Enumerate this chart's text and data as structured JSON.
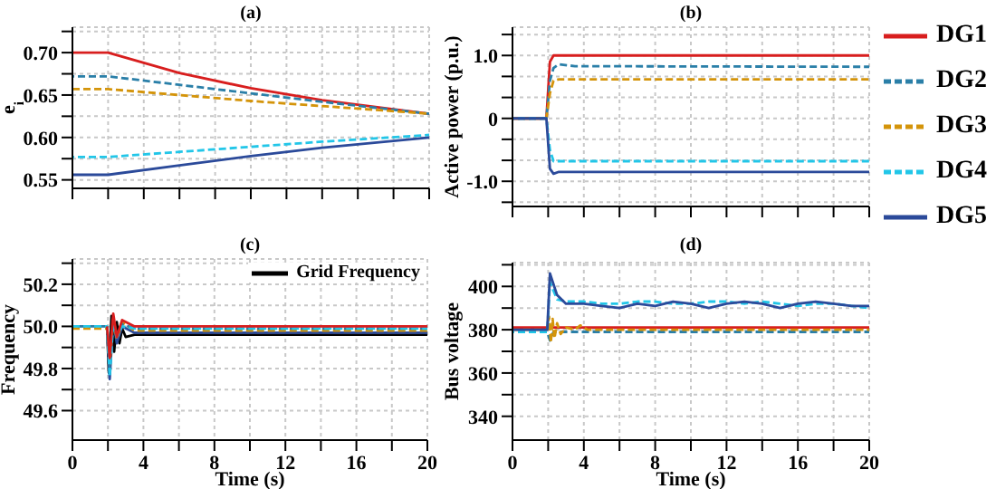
{
  "chart_data": [
    {
      "type": "line",
      "title": "(a)",
      "ylabel": "e$_{i}$",
      "xlim": [
        0,
        20
      ],
      "xticks": [
        {
          "value": 0,
          "label": null
        },
        {
          "value": 2,
          "label": null
        },
        {
          "value": 4,
          "label": null
        },
        {
          "value": 6,
          "label": null
        },
        {
          "value": 8,
          "label": null
        },
        {
          "value": 10,
          "label": null
        },
        {
          "value": 12,
          "label": null
        },
        {
          "value": 14,
          "label": null
        },
        {
          "value": 16,
          "label": null
        },
        {
          "value": 18,
          "label": null
        },
        {
          "value": 20,
          "label": null
        }
      ],
      "ylim": [
        0.54,
        0.73
      ],
      "yticks": [
        0.55,
        {
          "value": 0.575,
          "label": null
        },
        {
          "value": 0.6,
          "label": "0.60"
        },
        {
          "value": 0.625,
          "label": null
        },
        0.65,
        {
          "value": 0.675,
          "label": null
        },
        {
          "value": 0.7,
          "label": "0.70"
        },
        {
          "value": 0.725,
          "label": null
        }
      ],
      "grid": true,
      "tick_labels": "y",
      "series": [
        {
          "color": "#d81e1e",
          "line_style": "solid",
          "x": [
            0,
            2,
            6,
            10,
            14,
            20
          ],
          "values": [
            0.7,
            0.7,
            0.676,
            0.658,
            0.644,
            0.628
          ]
        },
        {
          "color": "#2a7fa8",
          "line_style": "dashed",
          "x": [
            0,
            2,
            6,
            10,
            14,
            20
          ],
          "values": [
            0.672,
            0.672,
            0.662,
            0.652,
            0.642,
            0.628
          ]
        },
        {
          "color": "#d4940a",
          "line_style": "dashed",
          "x": [
            0,
            2,
            6,
            10,
            14,
            20
          ],
          "values": [
            0.657,
            0.657,
            0.65,
            0.643,
            0.637,
            0.628
          ]
        },
        {
          "color": "#22c6e8",
          "line_style": "dashed",
          "x": [
            0,
            2,
            6,
            10,
            14,
            20
          ],
          "values": [
            0.577,
            0.577,
            0.583,
            0.589,
            0.595,
            0.603
          ]
        },
        {
          "color": "#2b4a9a",
          "line_style": "solid",
          "x": [
            0,
            2,
            6,
            10,
            14,
            20
          ],
          "values": [
            0.556,
            0.556,
            0.567,
            0.578,
            0.588,
            0.6
          ]
        }
      ]
    },
    {
      "type": "line",
      "title": "(b)",
      "ylabel": "Active power (p.u.)",
      "xlim": [
        0,
        20
      ],
      "xticks": [
        {
          "value": 0,
          "label": null
        },
        {
          "value": 2,
          "label": null
        },
        {
          "value": 4,
          "label": null
        },
        {
          "value": 6,
          "label": null
        },
        {
          "value": 8,
          "label": null
        },
        {
          "value": 10,
          "label": null
        },
        {
          "value": 12,
          "label": null
        },
        {
          "value": 14,
          "label": null
        },
        {
          "value": 16,
          "label": null
        },
        {
          "value": 18,
          "label": null
        },
        {
          "value": 20,
          "label": null
        }
      ],
      "ylim": [
        -1.4,
        1.45
      ],
      "yticks": [
        {
          "value": -1.333,
          "label": null
        },
        {
          "value": -1,
          "label": "-1.0"
        },
        {
          "value": -0.667,
          "label": null
        },
        {
          "value": -0.333,
          "label": null
        },
        0,
        {
          "value": 0.333,
          "label": null
        },
        {
          "value": 0.667,
          "label": null
        },
        {
          "value": 1,
          "label": "1.0"
        },
        {
          "value": 1.333,
          "label": null
        }
      ],
      "grid": true,
      "tick_labels": "y",
      "legend": "right",
      "series": [
        {
          "name": "DG1",
          "color": "#d81e1e",
          "line_style": "solid",
          "x": [
            0,
            1.9,
            2.1,
            2.3,
            2.6,
            3.5,
            20
          ],
          "values": [
            0,
            0,
            0.9,
            1.0,
            1.0,
            1.0,
            1.0
          ]
        },
        {
          "name": "DG2",
          "color": "#2a7fa8",
          "line_style": "dashed",
          "x": [
            0,
            1.9,
            2.1,
            2.3,
            2.6,
            3.5,
            20
          ],
          "values": [
            0,
            0,
            0.6,
            0.8,
            0.86,
            0.83,
            0.82
          ]
        },
        {
          "name": "DG3",
          "color": "#d4940a",
          "line_style": "dashed",
          "x": [
            0,
            1.9,
            2.1,
            2.3,
            2.6,
            3.5,
            20
          ],
          "values": [
            0,
            0,
            0.4,
            0.6,
            0.62,
            0.62,
            0.62
          ]
        },
        {
          "name": "DG4",
          "color": "#22c6e8",
          "line_style": "dashed",
          "x": [
            0,
            1.9,
            2.1,
            2.3,
            2.6,
            3.5,
            20
          ],
          "values": [
            0,
            0,
            -0.5,
            -0.68,
            -0.68,
            -0.68,
            -0.68
          ]
        },
        {
          "name": "DG5",
          "color": "#2b4a9a",
          "line_style": "solid",
          "x": [
            0,
            1.9,
            2.1,
            2.3,
            2.6,
            3.5,
            20
          ],
          "values": [
            0,
            0,
            -0.8,
            -0.88,
            -0.85,
            -0.85,
            -0.85
          ]
        }
      ]
    },
    {
      "type": "line",
      "title": "(c)",
      "xlabel": "Time (s)",
      "ylabel": "Frequency",
      "xlim": [
        0,
        20
      ],
      "xticks": [
        0,
        {
          "value": 2,
          "label": null
        },
        4,
        {
          "value": 6,
          "label": null
        },
        8,
        {
          "value": 10,
          "label": null
        },
        12,
        {
          "value": 14,
          "label": null
        },
        16,
        {
          "value": 18,
          "label": null
        },
        20
      ],
      "ylim": [
        49.46,
        50.32
      ],
      "yticks": [
        49.6,
        {
          "value": 49.7,
          "label": null
        },
        49.8,
        {
          "value": 49.9,
          "label": null
        },
        {
          "value": 50,
          "label": "50.0"
        },
        {
          "value": 50.1,
          "label": null
        },
        50.2,
        {
          "value": 50.3,
          "label": null
        }
      ],
      "grid": true,
      "legend": "top right",
      "series": [
        {
          "name": "Grid Frequency",
          "color": "#000000",
          "line_style": "solid",
          "x": [
            1.95,
            2.05,
            2.2,
            2.35,
            2.5,
            2.65,
            2.8,
            3.0,
            3.5,
            20
          ],
          "values": [
            50.0,
            49.78,
            50.05,
            49.88,
            50.02,
            49.92,
            49.99,
            49.95,
            49.96,
            49.96
          ]
        },
        {
          "color": "#2b4a9a",
          "line_style": "solid",
          "x": [
            1.95,
            2.1,
            2.3,
            2.5,
            2.8,
            3.5,
            20
          ],
          "values": [
            50.0,
            49.75,
            50.04,
            49.92,
            50.0,
            49.97,
            49.97
          ]
        },
        {
          "color": "#d4940a",
          "line_style": "dashed",
          "x": [
            0,
            1.95,
            2.1,
            2.3,
            2.5,
            2.8,
            3.5,
            20
          ],
          "values": [
            49.99,
            49.99,
            49.82,
            50.04,
            49.94,
            50.02,
            49.98,
            49.98
          ]
        },
        {
          "color": "#2a7fa8",
          "line_style": "dashed",
          "x": [
            0,
            1.95,
            2.1,
            2.3,
            2.5,
            2.8,
            3.5,
            20
          ],
          "values": [
            50.0,
            50.0,
            49.8,
            50.03,
            49.96,
            50.01,
            49.99,
            49.99
          ]
        },
        {
          "color": "#22c6e8",
          "line_style": "dashed",
          "x": [
            0,
            1.95,
            2.1,
            2.3,
            2.5,
            2.8,
            3.5,
            20
          ],
          "values": [
            50.0,
            50.0,
            49.76,
            50.02,
            49.95,
            50.0,
            49.99,
            49.99
          ]
        },
        {
          "color": "#d81e1e",
          "line_style": "solid",
          "x": [
            1.95,
            2.1,
            2.3,
            2.5,
            2.8,
            3.5,
            20
          ],
          "values": [
            50.0,
            49.85,
            50.06,
            49.95,
            50.03,
            50.0,
            50.0
          ]
        }
      ]
    },
    {
      "type": "line",
      "title": "(d)",
      "xlabel": "Time (s)",
      "ylabel": "Bus voltage",
      "xlim": [
        0,
        20
      ],
      "xticks": [
        0,
        {
          "value": 2,
          "label": null
        },
        4,
        {
          "value": 6,
          "label": null
        },
        8,
        {
          "value": 10,
          "label": null
        },
        12,
        {
          "value": 14,
          "label": null
        },
        16,
        {
          "value": 18,
          "label": null
        },
        20
      ],
      "ylim": [
        329,
        411
      ],
      "yticks": [
        340,
        {
          "value": 350,
          "label": null
        },
        360,
        {
          "value": 370,
          "label": null
        },
        380,
        {
          "value": 390,
          "label": null
        },
        400,
        {
          "value": 410,
          "label": null
        }
      ],
      "grid": true,
      "series": [
        {
          "color": "#d81e1e",
          "line_style": "solid",
          "x": [
            0,
            2,
            20
          ],
          "values": [
            381,
            381,
            381
          ]
        },
        {
          "color": "#2a7fa8",
          "line_style": "dashed",
          "x": [
            0,
            1.95,
            2.1,
            2.3,
            20
          ],
          "values": [
            379,
            379,
            375,
            379,
            379
          ]
        },
        {
          "color": "#d4940a",
          "line_style": "dashed",
          "x": [
            0,
            1.95,
            2.05,
            2.15,
            2.25,
            2.35,
            2.5,
            2.7,
            3,
            3.5,
            3.8,
            4.2,
            20
          ],
          "values": [
            380,
            380,
            386,
            374,
            385,
            376,
            383,
            378,
            381,
            380,
            382,
            380,
            380
          ]
        },
        {
          "color": "#22c6e8",
          "line_style": "dashed",
          "x": [
            0,
            1.95,
            2.1,
            2.5,
            3,
            4,
            5,
            6,
            7,
            8,
            9,
            10,
            11,
            12,
            13,
            14,
            15,
            16,
            17,
            18,
            19,
            20
          ],
          "values": [
            379,
            379,
            402,
            394,
            393,
            393,
            392,
            392,
            393,
            393,
            392,
            392,
            393,
            393,
            392,
            393,
            392,
            391,
            392,
            392,
            391,
            390
          ]
        },
        {
          "color": "#2b4a9a",
          "line_style": "solid",
          "x": [
            0,
            1.95,
            2.1,
            2.5,
            3,
            4,
            5,
            6,
            7,
            8,
            9,
            10,
            11,
            12,
            13,
            14,
            15,
            16,
            17,
            18,
            19,
            20
          ],
          "values": [
            380,
            380,
            406,
            396,
            392,
            392,
            391,
            390,
            392,
            391,
            393,
            392,
            390,
            392,
            393,
            392,
            390,
            392,
            393,
            392,
            391,
            391
          ]
        }
      ]
    }
  ]
}
